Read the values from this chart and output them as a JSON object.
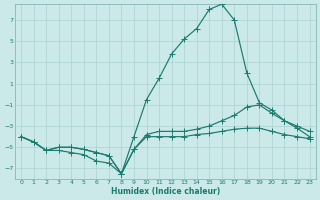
{
  "xlabel": "Humidex (Indice chaleur)",
  "xlim": [
    -0.5,
    23.5
  ],
  "ylim": [
    -8,
    8.5
  ],
  "yticks": [
    -7,
    -5,
    -3,
    -1,
    1,
    3,
    5,
    7
  ],
  "xticks": [
    0,
    1,
    2,
    3,
    4,
    5,
    6,
    7,
    8,
    9,
    10,
    11,
    12,
    13,
    14,
    15,
    16,
    17,
    18,
    19,
    20,
    21,
    22,
    23
  ],
  "bg_color": "#cce9e9",
  "line_color": "#1a7a6e",
  "grid_color": "#b0d4d4",
  "line1_y": [
    -4.0,
    -4.5,
    -5.3,
    -5.3,
    -5.5,
    -5.7,
    -6.3,
    -6.5,
    -7.5,
    -4.0,
    -0.5,
    1.5,
    3.8,
    5.2,
    6.2,
    8.0,
    8.5,
    7.0,
    2.0,
    -0.8,
    -1.5,
    -2.5,
    -3.2,
    -4.0
  ],
  "line2_y": [
    -4.0,
    -4.5,
    -5.3,
    -5.0,
    -5.0,
    -5.2,
    -5.5,
    -5.8,
    -7.5,
    -5.2,
    -3.8,
    -3.5,
    -3.5,
    -3.5,
    -3.3,
    -3.0,
    -2.5,
    -2.0,
    -1.2,
    -1.0,
    -1.8,
    -2.5,
    -3.0,
    -3.5
  ],
  "line3_y": [
    -4.0,
    -4.5,
    -5.3,
    -5.0,
    -5.0,
    -5.2,
    -5.5,
    -5.8,
    -7.5,
    -5.2,
    -4.0,
    -4.0,
    -4.0,
    -4.0,
    -3.8,
    -3.7,
    -3.5,
    -3.3,
    -3.2,
    -3.2,
    -3.5,
    -3.8,
    -4.0,
    -4.2
  ]
}
